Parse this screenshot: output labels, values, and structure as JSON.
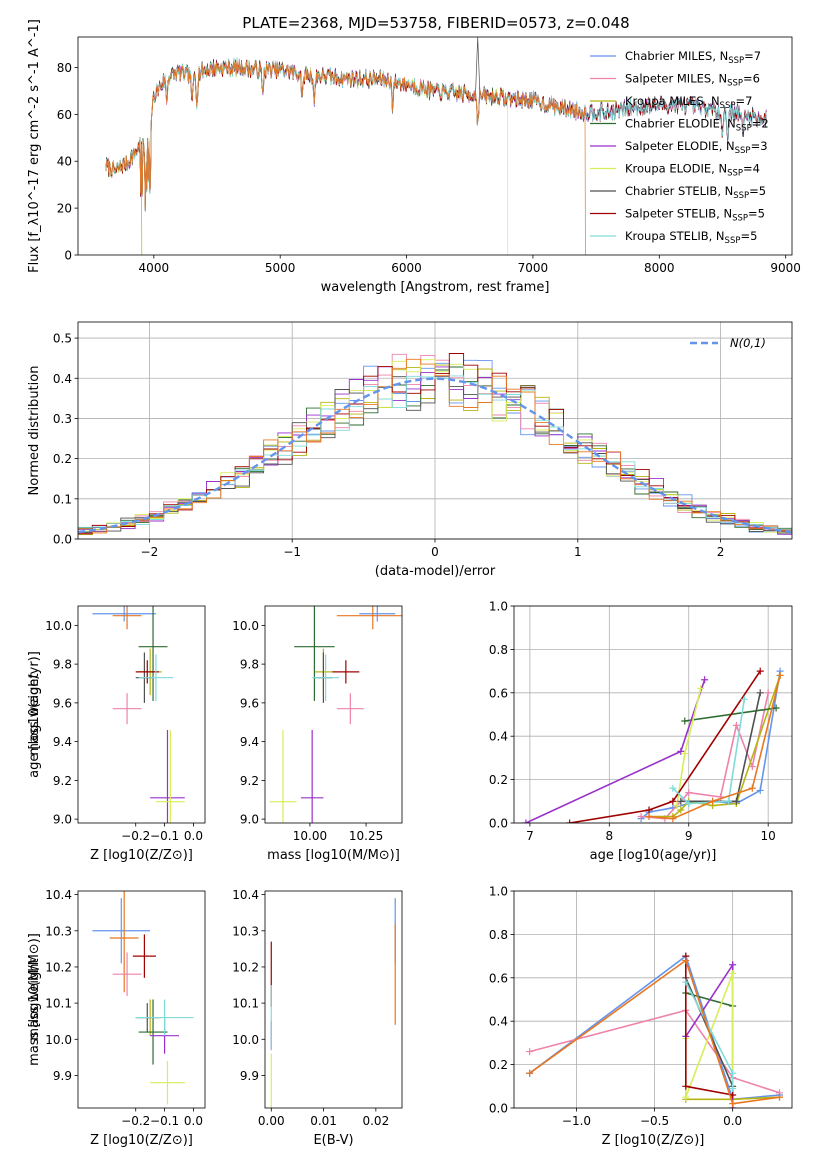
{
  "figure_title": "PLATE=2368, MJD=53758, FIBERID=0573, z=0.048",
  "colors": {
    "chabrier_miles": "#6495ed",
    "salpeter_miles": "#ee82ab",
    "kroupa_miles": "#b5b512",
    "chabrier_elodie": "#2e6b2e",
    "salpeter_elodie": "#9932cc",
    "kroupa_elodie": "#d7ed5a",
    "chabrier_stelib": "#505050",
    "salpeter_stelib": "#a00000",
    "kroupa_stelib": "#7fdbdb",
    "orange": "#e87722",
    "grid": "#b0b0b0"
  },
  "chart_data": [
    {
      "id": "spectrum",
      "type": "line",
      "title": "PLATE=2368, MJD=53758, FIBERID=0573, z=0.048",
      "xlabel": "wavelength [Angstrom, rest frame]",
      "ylabel": "Flux [f_λ10^-17 erg cm^-2 s^-1 A^-1]",
      "xlim": [
        3400,
        9050
      ],
      "ylim": [
        0,
        93
      ],
      "xticks": [
        4000,
        5000,
        6000,
        7000,
        8000,
        9000
      ],
      "yticks": [
        0,
        20,
        40,
        60,
        80
      ],
      "grid": false,
      "legend_position": "right",
      "legend": [
        {
          "base": "Chabrier MILES, N",
          "sub": "SSP",
          "tail": "=7",
          "color_key": "chabrier_miles"
        },
        {
          "base": "Salpeter MILES, N",
          "sub": "SSP",
          "tail": "=6",
          "color_key": "salpeter_miles"
        },
        {
          "base": "Kroupa MILES, N",
          "sub": "SSP",
          "tail": "=7",
          "color_key": "kroupa_miles"
        },
        {
          "base": "Chabrier ELODIE, N",
          "sub": "SSP",
          "tail": "=2",
          "color_key": "chabrier_elodie"
        },
        {
          "base": "Salpeter ELODIE, N",
          "sub": "SSP",
          "tail": "=3",
          "color_key": "salpeter_elodie"
        },
        {
          "base": "Kroupa ELODIE, N",
          "sub": "SSP",
          "tail": "=4",
          "color_key": "kroupa_elodie"
        },
        {
          "base": "Chabrier STELIB, N",
          "sub": "SSP",
          "tail": "=5",
          "color_key": "chabrier_stelib"
        },
        {
          "base": "Salpeter STELIB, N",
          "sub": "SSP",
          "tail": "=5",
          "color_key": "salpeter_stelib"
        },
        {
          "base": "Kroupa STELIB, N",
          "sub": "SSP",
          "tail": "=5",
          "color_key": "kroupa_stelib"
        }
      ],
      "continuum": [
        [
          3620,
          38
        ],
        [
          3700,
          36
        ],
        [
          3800,
          40
        ],
        [
          3880,
          46
        ],
        [
          3950,
          50
        ],
        [
          4000,
          68
        ],
        [
          4100,
          76
        ],
        [
          4200,
          78
        ],
        [
          4300,
          76
        ],
        [
          4400,
          79
        ],
        [
          4500,
          80
        ],
        [
          4700,
          80
        ],
        [
          4860,
          79
        ],
        [
          5000,
          79
        ],
        [
          5200,
          77
        ],
        [
          5400,
          76
        ],
        [
          5600,
          75
        ],
        [
          5800,
          75
        ],
        [
          6000,
          73
        ],
        [
          6200,
          70
        ],
        [
          6400,
          69
        ],
        [
          6600,
          68
        ],
        [
          6800,
          67
        ],
        [
          7000,
          66
        ],
        [
          7200,
          63
        ],
        [
          7400,
          61
        ],
        [
          7600,
          61
        ],
        [
          7800,
          63
        ],
        [
          8000,
          64
        ],
        [
          8200,
          64
        ],
        [
          8400,
          62
        ],
        [
          8600,
          61
        ],
        [
          8800,
          58
        ]
      ],
      "truncations": [
        {
          "color_key": "kroupa_miles",
          "x_end": 3905
        },
        {
          "color_key": "kroupa_elodie",
          "x_end": 6800
        },
        {
          "color_key": "orange",
          "x_end": 7415
        }
      ],
      "emission": {
        "x": 6563,
        "peak": 93
      }
    },
    {
      "id": "residual_histogram",
      "type": "histogram",
      "xlabel": "(data-model)/error",
      "ylabel": "Normed distribution",
      "xlim": [
        -2.5,
        2.5
      ],
      "ylim": [
        0,
        0.54
      ],
      "xticks": [
        -2,
        -1,
        0,
        1,
        2
      ],
      "yticks": [
        0.0,
        0.1,
        0.2,
        0.3,
        0.4,
        0.5
      ],
      "grid": true,
      "legend": [
        {
          "label": "N(0,1)",
          "color_key": "chabrier_miles",
          "style": "dashed"
        }
      ],
      "bin_width": 0.1,
      "gaussian": {
        "mu": 0,
        "sigma": 1
      }
    },
    {
      "id": "age_vs_Z",
      "type": "errorbar",
      "xlabel": "Z [log10(Z/Z⊙)]",
      "ylabel": "age [log10(age/yr)]",
      "xlim": [
        -0.4,
        0.04
      ],
      "ylim": [
        8.98,
        10.1
      ],
      "xticks": [
        -0.2,
        -0.1,
        0.0
      ],
      "yticks": [
        9.0,
        9.2,
        9.4,
        9.6,
        9.8,
        10.0
      ],
      "points": [
        {
          "color_key": "chabrier_miles",
          "x": -0.24,
          "xerr": 0.11,
          "y": 10.06,
          "yerr": 0.04
        },
        {
          "color_key": "orange",
          "x": -0.23,
          "xerr": 0.05,
          "y": 10.05,
          "yerr": 0.07
        },
        {
          "color_key": "salpeter_miles",
          "x": -0.23,
          "xerr": 0.05,
          "y": 9.57,
          "yerr": 0.08
        },
        {
          "color_key": "kroupa_miles",
          "x": -0.15,
          "xerr": 0.04,
          "y": 9.76,
          "yerr": 0.12
        },
        {
          "color_key": "chabrier_elodie",
          "x": -0.14,
          "xerr": 0.05,
          "y": 9.89,
          "yerr": 0.28
        },
        {
          "color_key": "salpeter_elodie",
          "x": -0.09,
          "xerr": 0.06,
          "y": 9.11,
          "yerr": 0.35
        },
        {
          "color_key": "kroupa_elodie",
          "x": -0.08,
          "xerr": 0.05,
          "y": 9.09,
          "yerr": 0.37
        },
        {
          "color_key": "chabrier_stelib",
          "x": -0.17,
          "xerr": 0.03,
          "y": 9.73,
          "yerr": 0.13
        },
        {
          "color_key": "salpeter_stelib",
          "x": -0.16,
          "xerr": 0.04,
          "y": 9.76,
          "yerr": 0.06
        },
        {
          "color_key": "kroupa_stelib",
          "x": -0.13,
          "xerr": 0.06,
          "y": 9.73,
          "yerr": 0.12
        }
      ]
    },
    {
      "id": "age_vs_mass",
      "type": "errorbar",
      "xlabel": "mass [log10(M/M⊙)]",
      "ylabel": "",
      "xlim": [
        9.8,
        10.41
      ],
      "ylim": [
        8.98,
        10.1
      ],
      "xticks": [
        10.0,
        10.25
      ],
      "yticks": [
        9.0,
        9.2,
        9.4,
        9.6,
        9.8,
        10.0
      ],
      "points": [
        {
          "color_key": "chabrier_miles",
          "x": 10.3,
          "xerr": 0.08,
          "y": 10.06,
          "yerr": 0.04
        },
        {
          "color_key": "orange",
          "x": 10.28,
          "xerr": 0.16,
          "y": 10.05,
          "yerr": 0.07
        },
        {
          "color_key": "salpeter_miles",
          "x": 10.18,
          "xerr": 0.06,
          "y": 9.57,
          "yerr": 0.08
        },
        {
          "color_key": "kroupa_miles",
          "x": 10.06,
          "xerr": 0.04,
          "y": 9.76,
          "yerr": 0.12
        },
        {
          "color_key": "chabrier_elodie",
          "x": 10.02,
          "xerr": 0.09,
          "y": 9.89,
          "yerr": 0.28
        },
        {
          "color_key": "salpeter_elodie",
          "x": 10.01,
          "xerr": 0.05,
          "y": 9.11,
          "yerr": 0.35
        },
        {
          "color_key": "kroupa_elodie",
          "x": 9.88,
          "xerr": 0.06,
          "y": 9.09,
          "yerr": 0.37
        },
        {
          "color_key": "chabrier_stelib",
          "x": 10.06,
          "xerr": 0.04,
          "y": 9.73,
          "yerr": 0.13
        },
        {
          "color_key": "salpeter_stelib",
          "x": 10.16,
          "xerr": 0.06,
          "y": 9.76,
          "yerr": 0.06
        },
        {
          "color_key": "kroupa_stelib",
          "x": 10.07,
          "xerr": 0.06,
          "y": 9.73,
          "yerr": 0.12
        }
      ]
    },
    {
      "id": "weight_vs_age",
      "type": "line",
      "xlabel": "age [log10(age/yr)]",
      "ylabel": "mass weight",
      "xlim": [
        6.8,
        10.3
      ],
      "ylim": [
        0,
        1.0
      ],
      "xticks": [
        7,
        8,
        9,
        10
      ],
      "yticks": [
        0.0,
        0.2,
        0.4,
        0.6,
        0.8,
        1.0
      ],
      "grid": true,
      "series": [
        {
          "color_key": "chabrier_miles",
          "x": [
            8.4,
            8.5,
            8.8,
            9.0,
            9.3,
            9.6,
            9.9,
            10.15
          ],
          "y": [
            0.02,
            0.05,
            0.07,
            0.09,
            0.1,
            0.09,
            0.15,
            0.7
          ]
        },
        {
          "color_key": "salpeter_miles",
          "x": [
            8.4,
            8.7,
            9.0,
            9.4,
            9.6,
            9.8,
            10.0
          ],
          "y": [
            0.03,
            0.02,
            0.14,
            0.12,
            0.45,
            0.26,
            0.6
          ]
        },
        {
          "color_key": "kroupa_miles",
          "x": [
            8.5,
            8.8,
            8.9,
            9.0,
            9.3,
            9.6,
            10.15
          ],
          "y": [
            0.03,
            0.03,
            0.06,
            0.1,
            0.08,
            0.09,
            0.68
          ]
        },
        {
          "color_key": "chabrier_elodie",
          "x": [
            8.95,
            10.1
          ],
          "y": [
            0.47,
            0.53
          ]
        },
        {
          "color_key": "salpeter_elodie",
          "x": [
            6.95,
            8.9,
            9.2
          ],
          "y": [
            0.0,
            0.33,
            0.66
          ]
        },
        {
          "color_key": "kroupa_elodie",
          "x": [
            8.85,
            8.95,
            9.15
          ],
          "y": [
            0.08,
            0.32,
            0.62
          ]
        },
        {
          "color_key": "chabrier_stelib",
          "x": [
            8.9,
            9.6,
            9.9
          ],
          "y": [
            0.1,
            0.1,
            0.6
          ]
        },
        {
          "color_key": "salpeter_stelib",
          "x": [
            7.5,
            8.5,
            8.8,
            9.9
          ],
          "y": [
            0.0,
            0.06,
            0.1,
            0.7
          ]
        },
        {
          "color_key": "kroupa_stelib",
          "x": [
            8.8,
            9.0,
            9.5,
            9.7
          ],
          "y": [
            0.16,
            0.09,
            0.1,
            0.57
          ]
        },
        {
          "color_key": "orange",
          "x": [
            8.5,
            8.8,
            9.3,
            9.8,
            10.15
          ],
          "y": [
            0.03,
            0.02,
            0.1,
            0.16,
            0.68
          ]
        }
      ]
    },
    {
      "id": "mass_vs_Z",
      "type": "errorbar",
      "xlabel": "Z [log10(Z/Z⊙)]",
      "ylabel": "mass [log10(M/M⊙)]",
      "xlim": [
        -0.4,
        0.04
      ],
      "ylim": [
        9.81,
        10.41
      ],
      "xticks": [
        -0.2,
        -0.1,
        0.0
      ],
      "yticks": [
        9.9,
        10.0,
        10.1,
        10.2,
        10.3,
        10.4
      ],
      "points": [
        {
          "color_key": "chabrier_miles",
          "x": -0.25,
          "xerr": 0.1,
          "y": 10.3,
          "yerr": 0.09
        },
        {
          "color_key": "orange",
          "x": -0.24,
          "xerr": 0.05,
          "y": 10.28,
          "yerr": 0.15
        },
        {
          "color_key": "salpeter_miles",
          "x": -0.23,
          "xerr": 0.05,
          "y": 10.18,
          "yerr": 0.06
        },
        {
          "color_key": "kroupa_miles",
          "x": -0.15,
          "xerr": 0.04,
          "y": 10.06,
          "yerr": 0.05
        },
        {
          "color_key": "chabrier_elodie",
          "x": -0.14,
          "xerr": 0.05,
          "y": 10.02,
          "yerr": 0.09
        },
        {
          "color_key": "salpeter_elodie",
          "x": -0.1,
          "xerr": 0.05,
          "y": 10.01,
          "yerr": 0.05
        },
        {
          "color_key": "kroupa_elodie",
          "x": -0.09,
          "xerr": 0.06,
          "y": 9.88,
          "yerr": 0.06
        },
        {
          "color_key": "chabrier_stelib",
          "x": -0.16,
          "xerr": 0.04,
          "y": 10.06,
          "yerr": 0.04
        },
        {
          "color_key": "salpeter_stelib",
          "x": -0.17,
          "xerr": 0.04,
          "y": 10.23,
          "yerr": 0.06
        },
        {
          "color_key": "kroupa_stelib",
          "x": -0.1,
          "xerr": 0.1,
          "y": 10.06,
          "yerr": 0.05
        }
      ]
    },
    {
      "id": "mass_vs_ebv",
      "type": "errorbar",
      "xlabel": "E(B-V)",
      "ylabel": "",
      "xlim": [
        -0.0012,
        0.025
      ],
      "ylim": [
        9.81,
        10.41
      ],
      "xticks": [
        0.0,
        0.01,
        0.02
      ],
      "xticklabels": [
        "0.00",
        "0.01",
        "0.02"
      ],
      "yticks": [
        9.9,
        10.0,
        10.1,
        10.2,
        10.3,
        10.4
      ],
      "points": [
        {
          "color_key": "chabrier_miles",
          "x": 0.0237,
          "xerr": 0,
          "y": 10.3,
          "yerr": 0.09
        },
        {
          "color_key": "orange",
          "x": 0.0237,
          "xerr": 0,
          "y": 10.18,
          "yerr": 0.14
        },
        {
          "color_key": "salpeter_stelib",
          "x": 0.0,
          "xerr": 0,
          "y": 10.18,
          "yerr": 0.09
        },
        {
          "color_key": "salpeter_elodie",
          "x": 0.0,
          "xerr": 0,
          "y": 10.01,
          "yerr": 0.04
        },
        {
          "color_key": "kroupa_elodie",
          "x": 0.0,
          "xerr": 0,
          "y": 9.88,
          "yerr": 0.08
        },
        {
          "color_key": "kroupa_stelib",
          "x": 0.0,
          "xerr": 0,
          "y": 10.06,
          "yerr": 0.09
        }
      ]
    },
    {
      "id": "weight_vs_Z",
      "type": "line",
      "xlabel": "Z [log10(Z/Z⊙)]",
      "ylabel": "mass weight",
      "xlim": [
        -1.4,
        0.38
      ],
      "ylim": [
        0,
        1.0
      ],
      "xticks": [
        -1.0,
        -0.5,
        0.0
      ],
      "xticklabels": [
        "−1.0",
        "−0.5",
        "0.0"
      ],
      "yticks": [
        0.0,
        0.2,
        0.4,
        0.6,
        0.8,
        1.0
      ],
      "grid": true,
      "series": [
        {
          "color_key": "chabrier_miles",
          "x": [
            -1.3,
            -0.3,
            0.0,
            0.3
          ],
          "y": [
            0.16,
            0.7,
            0.04,
            0.06
          ]
        },
        {
          "color_key": "salpeter_miles",
          "x": [
            -1.3,
            -0.3,
            0.0,
            0.3
          ],
          "y": [
            0.26,
            0.45,
            0.14,
            0.07
          ]
        },
        {
          "color_key": "kroupa_miles",
          "x": [
            -0.3,
            0.0,
            0.3
          ],
          "y": [
            0.04,
            0.04,
            0.05
          ]
        },
        {
          "color_key": "chabrier_elodie",
          "x": [
            -0.3,
            0.0
          ],
          "y": [
            0.53,
            0.47
          ]
        },
        {
          "color_key": "salpeter_elodie",
          "x": [
            -0.3,
            0.0,
            0.0
          ],
          "y": [
            0.33,
            0.66,
            0.0
          ]
        },
        {
          "color_key": "kroupa_elodie",
          "x": [
            -0.3,
            -0.3,
            0.0,
            0.0
          ],
          "y": [
            0.32,
            0.05,
            0.62,
            0.1
          ]
        },
        {
          "color_key": "chabrier_stelib",
          "x": [
            -0.3,
            0.0
          ],
          "y": [
            0.6,
            0.1
          ]
        },
        {
          "color_key": "salpeter_stelib",
          "x": [
            -0.3,
            -0.3,
            0.0
          ],
          "y": [
            0.7,
            0.1,
            0.06
          ]
        },
        {
          "color_key": "kroupa_stelib",
          "x": [
            -0.3,
            0.0,
            0.0
          ],
          "y": [
            0.58,
            0.16,
            0.09
          ]
        },
        {
          "color_key": "orange",
          "x": [
            -1.3,
            -0.3,
            0.0,
            0.3
          ],
          "y": [
            0.16,
            0.68,
            0.02,
            0.05
          ]
        }
      ]
    }
  ]
}
